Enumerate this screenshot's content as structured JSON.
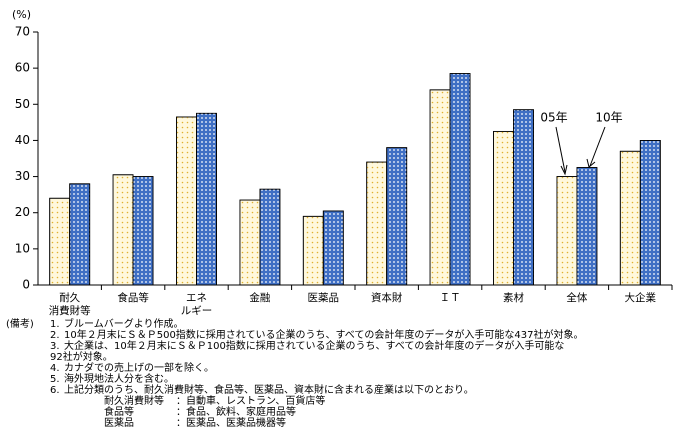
{
  "chart_data": {
    "type": "bar",
    "y_unit": "(%)",
    "categories": [
      [
        "耐久",
        "消費財等"
      ],
      [
        "食品等"
      ],
      [
        "エネ",
        "ルギー"
      ],
      [
        "金融"
      ],
      [
        "医薬品"
      ],
      [
        "資本財"
      ],
      [
        "ＩＴ"
      ],
      [
        "素材"
      ],
      [
        "全体"
      ],
      [
        "大企業"
      ]
    ],
    "series": [
      {
        "name": "05年",
        "color": "#fff8dc",
        "values": [
          24,
          30.5,
          46.5,
          23.5,
          19,
          34,
          54,
          42.5,
          30,
          37
        ]
      },
      {
        "name": "10年",
        "color": "#3f6fc4",
        "values": [
          28,
          30,
          47.5,
          26.5,
          20.5,
          38,
          58.5,
          48.5,
          32.5,
          40
        ]
      }
    ],
    "ylim": [
      0,
      70
    ],
    "yticks": [
      0,
      10,
      20,
      30,
      40,
      50,
      60,
      70
    ],
    "grid": false,
    "notes_head": "(備考)",
    "notes": [
      {
        "num": "1.",
        "lines": [
          "ブルームバーグより作成。"
        ]
      },
      {
        "num": "2.",
        "lines": [
          "10年２月末にＳ＆Ｐ500指数に採用されている企業のうち、すべての会計年度のデータが入手可能な437社が対象。"
        ]
      },
      {
        "num": "3.",
        "lines": [
          "大企業は、10年２月末にＳ＆Ｐ100指数に採用されている企業のうち、すべての会計年度のデータが入手可能な",
          "92社が対象。"
        ]
      },
      {
        "num": "4.",
        "lines": [
          "カナダでの売上げの一部を除く。"
        ]
      },
      {
        "num": "5.",
        "lines": [
          "海外現地法人分を含む。"
        ]
      },
      {
        "num": "6.",
        "lines": [
          "上記分類のうち、耐久消費財等、食品等、医薬品、資本財に含まれる産業は以下のとおり。"
        ]
      }
    ],
    "note_items": [
      {
        "label": "耐久消費財等",
        "text": "：自動車、レストラン、百貨店等"
      },
      {
        "label": "食品等",
        "text": "：食品、飲料、家庭用品等"
      },
      {
        "label": "医薬品",
        "text": "：医薬品、医薬品機器等"
      }
    ]
  }
}
